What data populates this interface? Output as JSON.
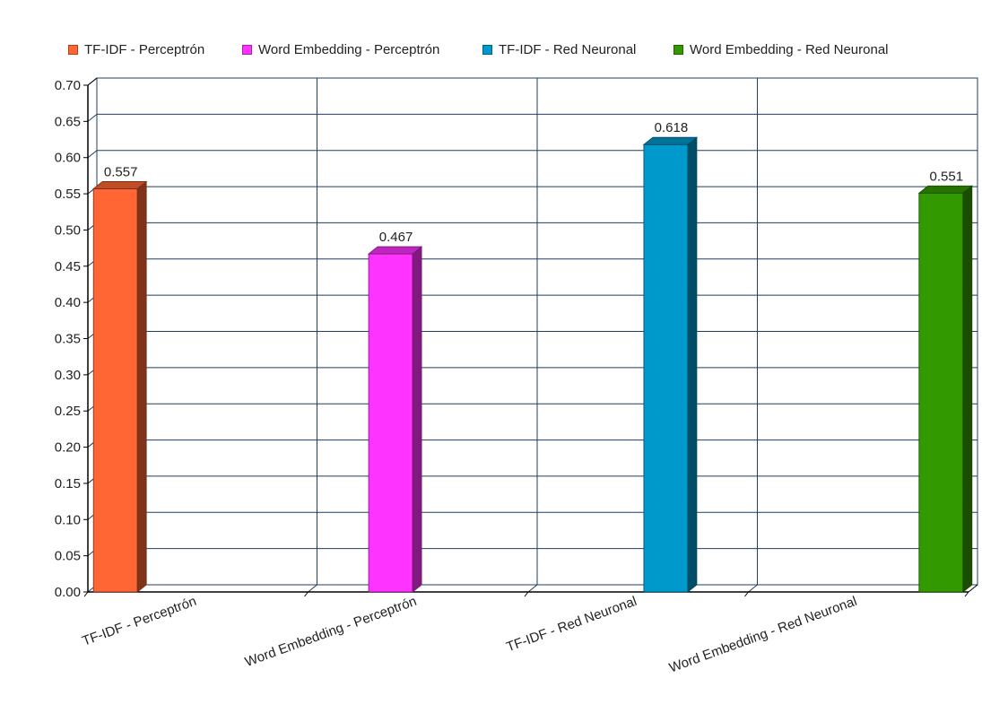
{
  "chart_data": {
    "type": "bar",
    "title": "",
    "xlabel": "",
    "ylabel": "",
    "categories": [
      "TF-IDF - Perceptrón",
      "Word Embedding - Perceptrón",
      "TF-IDF - Red Neuronal",
      "Word Embedding - Red Neuronal"
    ],
    "series": [
      {
        "name": "TF-IDF - Perceptrón",
        "color": "#ff6633",
        "values": [
          0.557,
          null,
          null,
          null
        ]
      },
      {
        "name": "Word Embedding - Perceptrón",
        "color": "#ff33ff",
        "values": [
          null,
          0.467,
          null,
          null
        ]
      },
      {
        "name": "TF-IDF - Red Neuronal",
        "color": "#0099cc",
        "values": [
          null,
          null,
          0.618,
          null
        ]
      },
      {
        "name": "Word Embedding - Red Neuronal",
        "color": "#339900",
        "values": [
          null,
          null,
          null,
          0.551
        ]
      }
    ],
    "data_labels": [
      "0.557",
      "0.467",
      "0.618",
      "0.551"
    ],
    "ylim": [
      0,
      0.7
    ],
    "yticks": [
      "0.00",
      "0.05",
      "0.10",
      "0.15",
      "0.20",
      "0.25",
      "0.30",
      "0.35",
      "0.40",
      "0.45",
      "0.50",
      "0.55",
      "0.60",
      "0.65",
      "0.70"
    ],
    "grid": true,
    "legend_position": "top",
    "style": "3d"
  },
  "colors": {
    "grid": "#1f3f5f",
    "axis": "#000000",
    "text": "#222222"
  }
}
